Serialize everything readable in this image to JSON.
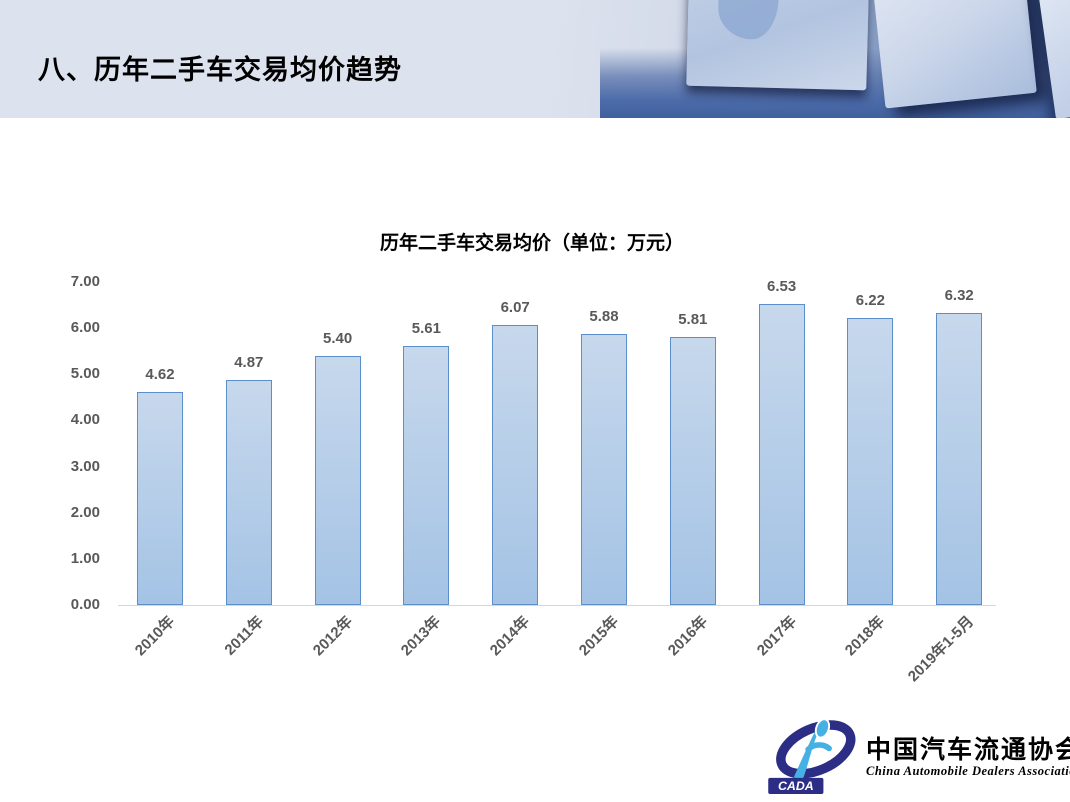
{
  "header": {
    "title": "八、历年二手车交易均价趋势"
  },
  "chart_data": {
    "type": "bar",
    "title": "历年二手车交易均价（单位：万元）",
    "categories": [
      "2010年",
      "2011年",
      "2012年",
      "2013年",
      "2014年",
      "2015年",
      "2016年",
      "2017年",
      "2018年",
      "2019年1-5月"
    ],
    "values": [
      4.62,
      4.87,
      5.4,
      5.61,
      6.07,
      5.88,
      5.81,
      6.53,
      6.22,
      6.32
    ],
    "value_labels": [
      "4.62",
      "4.87",
      "5.40",
      "5.61",
      "6.07",
      "5.88",
      "5.81",
      "6.53",
      "6.22",
      "6.32"
    ],
    "yticks": [
      "0.00",
      "1.00",
      "2.00",
      "3.00",
      "4.00",
      "5.00",
      "6.00",
      "7.00"
    ],
    "ylim": [
      0,
      7
    ],
    "xlabel": "",
    "ylabel": "",
    "grid": false,
    "legend": "none",
    "colors": {
      "bar_fill_top": "#c7d8ec",
      "bar_fill_bottom": "#a4c3e5",
      "bar_border": "#5b8fc9",
      "tick_label": "#595959",
      "axis_line": "#d6d6d6",
      "title": "#000000"
    }
  },
  "logo": {
    "acronym": "CADA",
    "name_cn": "中国汽车流通协会",
    "name_en": "China Automobile Dealers Association"
  }
}
